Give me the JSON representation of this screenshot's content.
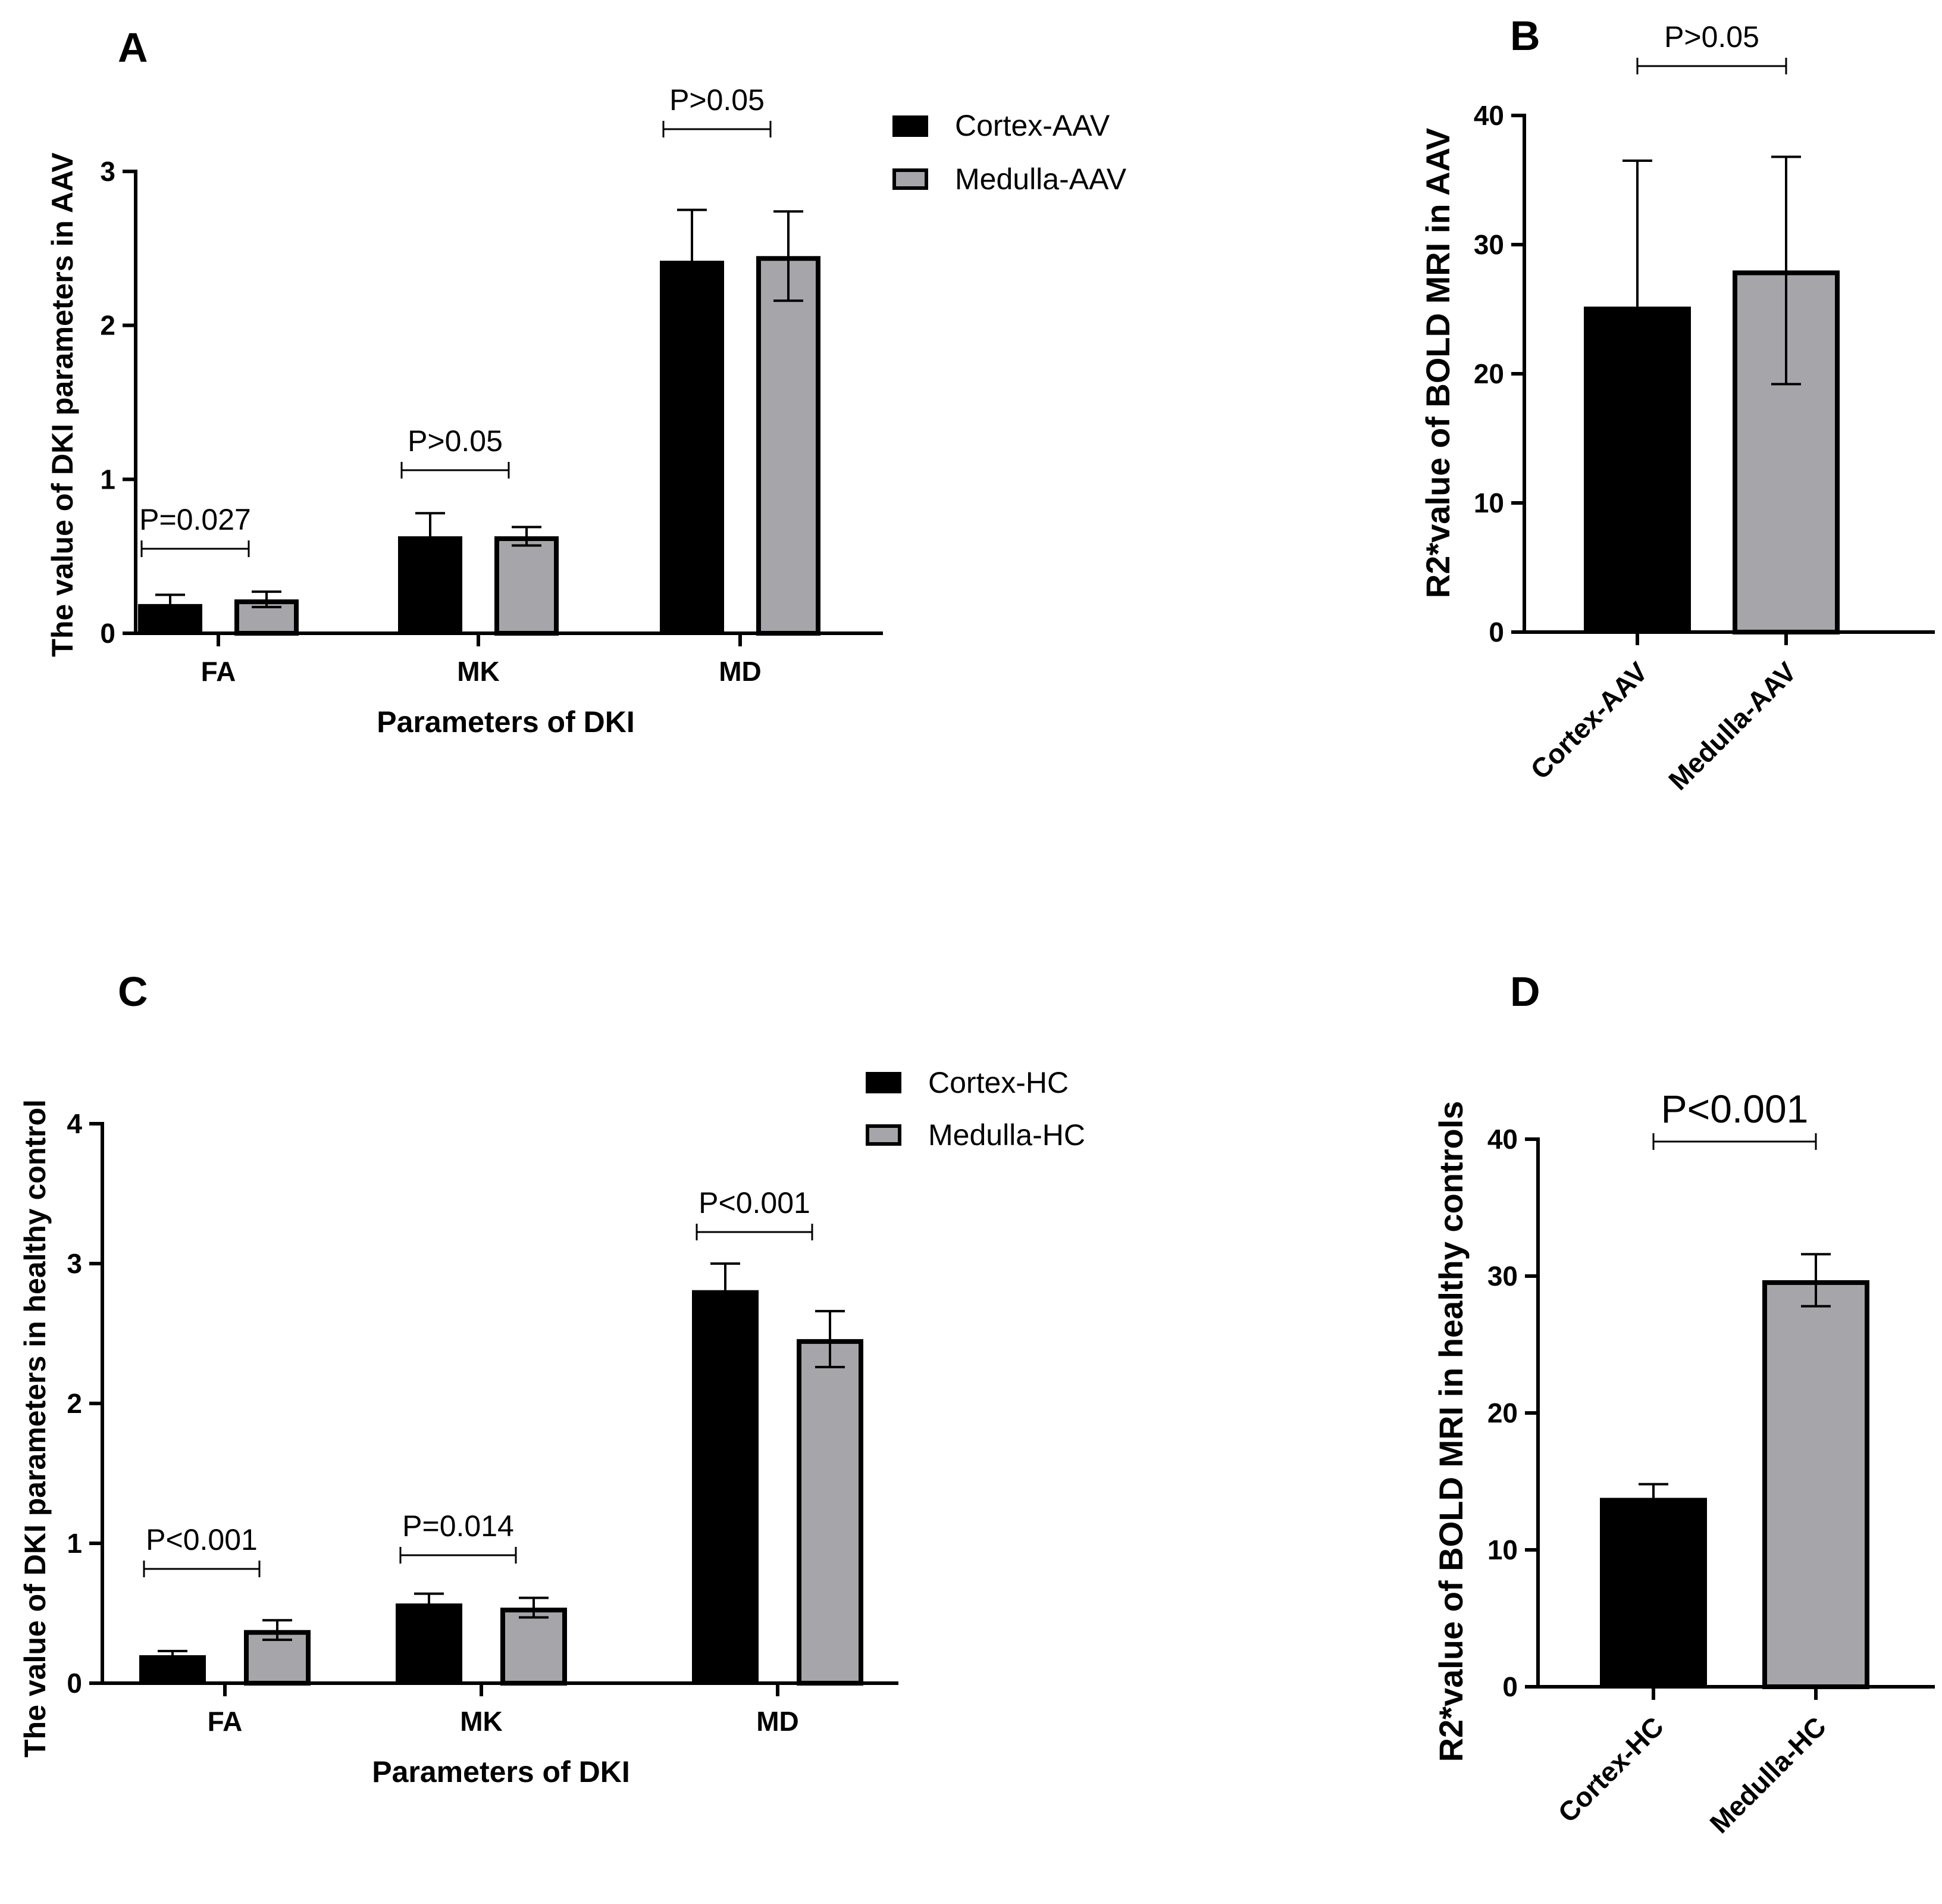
{
  "colors": {
    "cortex": "#000000",
    "medulla": "#a6a6aa",
    "axis": "#000000"
  },
  "chart_data": [
    {
      "id": "A",
      "type": "bar",
      "panel_label": "A",
      "categories": [
        "FA",
        "MK",
        "MD"
      ],
      "series": [
        {
          "name": "Cortex-AAV",
          "values": [
            0.19,
            0.63,
            2.42
          ],
          "errors": [
            0.06,
            0.15,
            0.33
          ]
        },
        {
          "name": "Medulla-AAV",
          "values": [
            0.22,
            0.63,
            2.45
          ],
          "errors": [
            0.05,
            0.06,
            0.29
          ]
        }
      ],
      "pvalues": [
        "P=0.027",
        "P>0.05",
        "P>0.05"
      ],
      "xlabel": "Parameters of DKI",
      "ylabel": "The value of DKI parameters in AAV",
      "ylim": [
        0,
        3
      ],
      "yticks": [
        "0",
        "1",
        "2",
        "3"
      ]
    },
    {
      "id": "B",
      "type": "bar",
      "panel_label": "B",
      "categories": [
        "Cortex-AAV",
        "Medulla-AAV"
      ],
      "values": [
        25.2,
        28.0
      ],
      "errors": [
        11.3,
        8.8
      ],
      "pvalue": "P>0.05",
      "ylabel": "R2*value of BOLD MRI  in AAV",
      "ylim": [
        0,
        40
      ],
      "yticks": [
        "0",
        "10",
        "20",
        "30",
        "40"
      ]
    },
    {
      "id": "C",
      "type": "bar",
      "panel_label": "C",
      "categories": [
        "FA",
        "MK",
        "MD"
      ],
      "series": [
        {
          "name": "Cortex-HC",
          "values": [
            0.2,
            0.57,
            2.81
          ],
          "errors": [
            0.03,
            0.07,
            0.19
          ]
        },
        {
          "name": "Medulla-HC",
          "values": [
            0.38,
            0.54,
            2.46
          ],
          "errors": [
            0.07,
            0.07,
            0.2
          ]
        }
      ],
      "pvalues": [
        "P<0.001",
        "P=0.014",
        "P<0.001"
      ],
      "xlabel": "Parameters of DKI",
      "ylabel": "The value of DKI parameters in healthy control",
      "ylim": [
        0,
        4
      ],
      "yticks": [
        "0",
        "1",
        "2",
        "3",
        "4"
      ]
    },
    {
      "id": "D",
      "type": "bar",
      "panel_label": "D",
      "categories": [
        "Cortex-HC",
        "Medulla-HC"
      ],
      "values": [
        13.8,
        29.7
      ],
      "errors": [
        1.0,
        1.9
      ],
      "pvalue": "P<0.001",
      "ylabel": "R2*value of BOLD MRI  in healthy controls",
      "ylim": [
        0,
        40
      ],
      "yticks": [
        "0",
        "10",
        "20",
        "30",
        "40"
      ]
    }
  ]
}
